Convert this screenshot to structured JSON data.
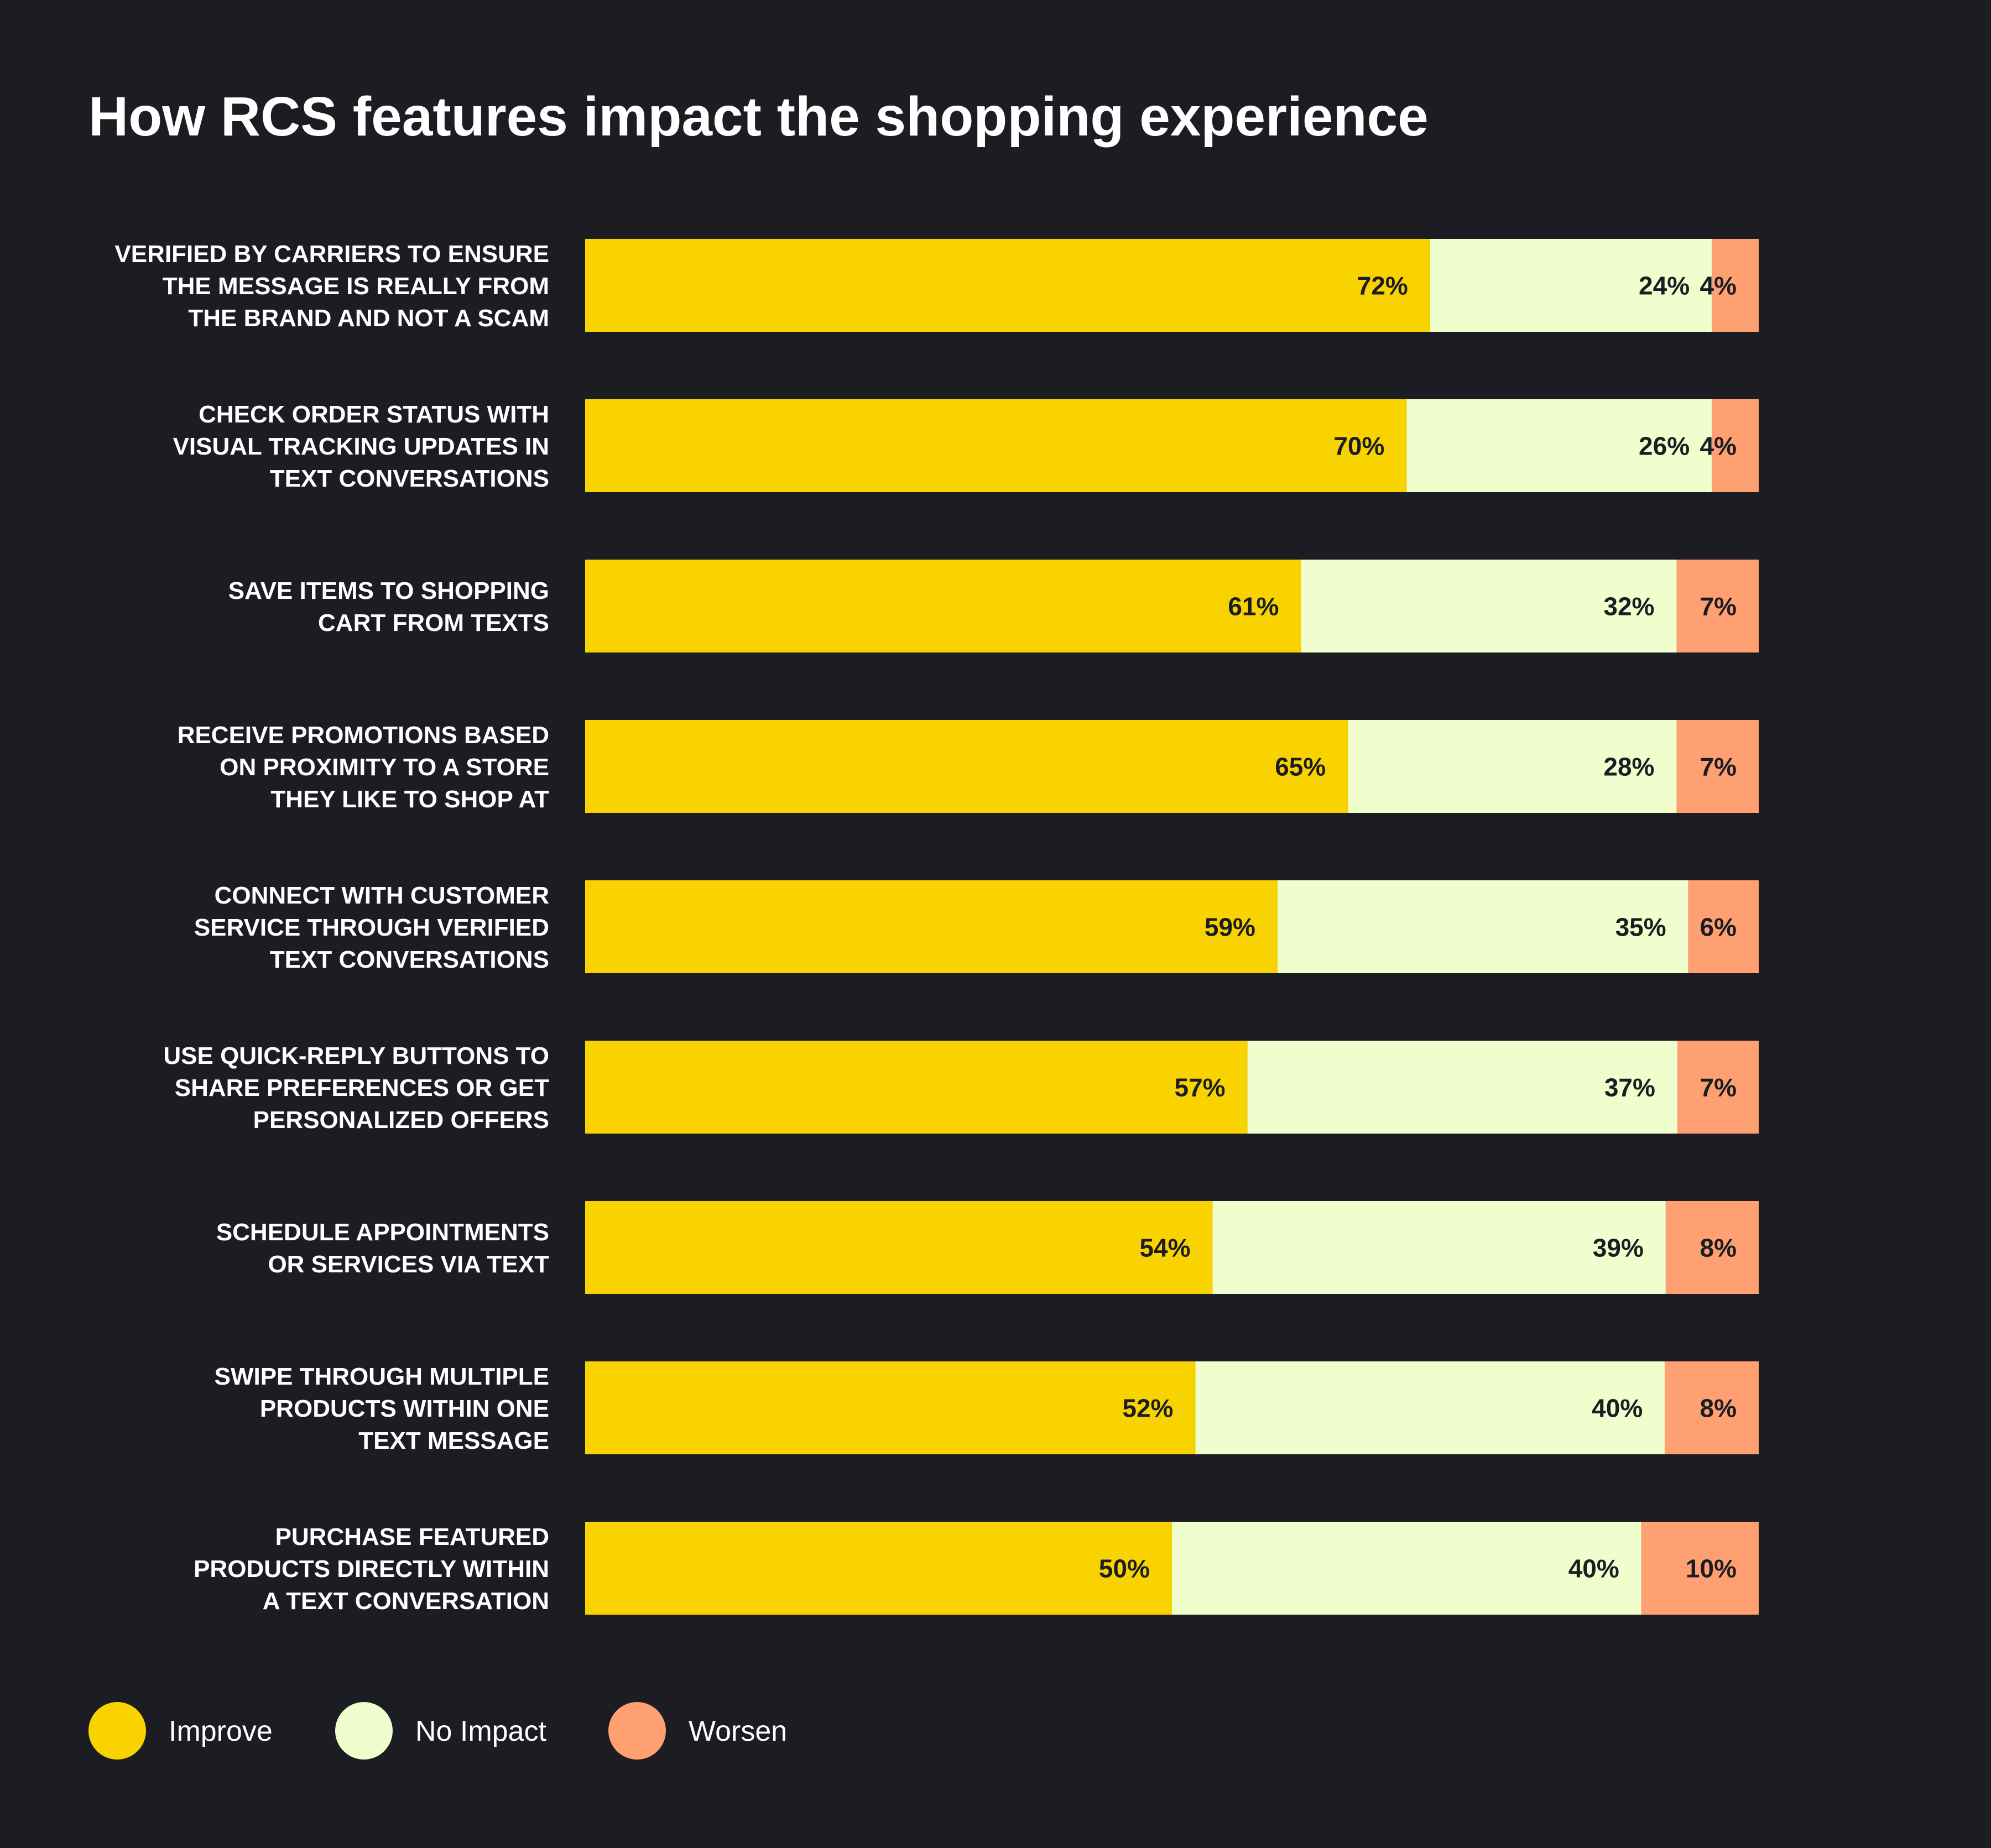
{
  "chart_data": {
    "type": "bar",
    "orientation": "horizontal",
    "stacked": true,
    "title": "How RCS features impact the shopping experience",
    "categories": [
      [
        "VERIFIED BY CARRIERS TO ENSURE",
        "THE MESSAGE IS REALLY FROM",
        "THE BRAND AND NOT A SCAM"
      ],
      [
        "CHECK ORDER STATUS WITH",
        "VISUAL TRACKING UPDATES IN",
        "TEXT CONVERSATIONS"
      ],
      [
        "SAVE ITEMS TO SHOPPING",
        "CART FROM TEXTS"
      ],
      [
        "RECEIVE PROMOTIONS BASED",
        "ON PROXIMITY TO A STORE",
        "THEY LIKE TO SHOP AT"
      ],
      [
        "CONNECT WITH CUSTOMER",
        "SERVICE THROUGH VERIFIED",
        "TEXT CONVERSATIONS"
      ],
      [
        "USE QUICK-REPLY BUTTONS TO",
        "SHARE PREFERENCES OR GET",
        "PERSONALIZED OFFERS"
      ],
      [
        "SCHEDULE APPOINTMENTS",
        "OR SERVICES VIA TEXT"
      ],
      [
        "SWIPE THROUGH MULTIPLE",
        "PRODUCTS WITHIN ONE",
        "TEXT MESSAGE"
      ],
      [
        "PURCHASE FEATURED",
        "PRODUCTS DIRECTLY WITHIN",
        "A TEXT CONVERSATION"
      ]
    ],
    "series": [
      {
        "name": "Improve",
        "color": "#f8d300",
        "values": [
          72,
          70,
          61,
          65,
          59,
          57,
          54,
          52,
          50
        ]
      },
      {
        "name": "No Impact",
        "color": "#f0fdcd",
        "values": [
          24,
          26,
          32,
          28,
          35,
          37,
          39,
          40,
          40
        ]
      },
      {
        "name": "Worsen",
        "color": "#ffa072",
        "values": [
          4,
          4,
          7,
          7,
          6,
          7,
          8,
          8,
          10
        ]
      }
    ],
    "value_suffix": "%",
    "xlim": [
      0,
      100
    ],
    "grid": false,
    "legend": "bottom-left"
  }
}
